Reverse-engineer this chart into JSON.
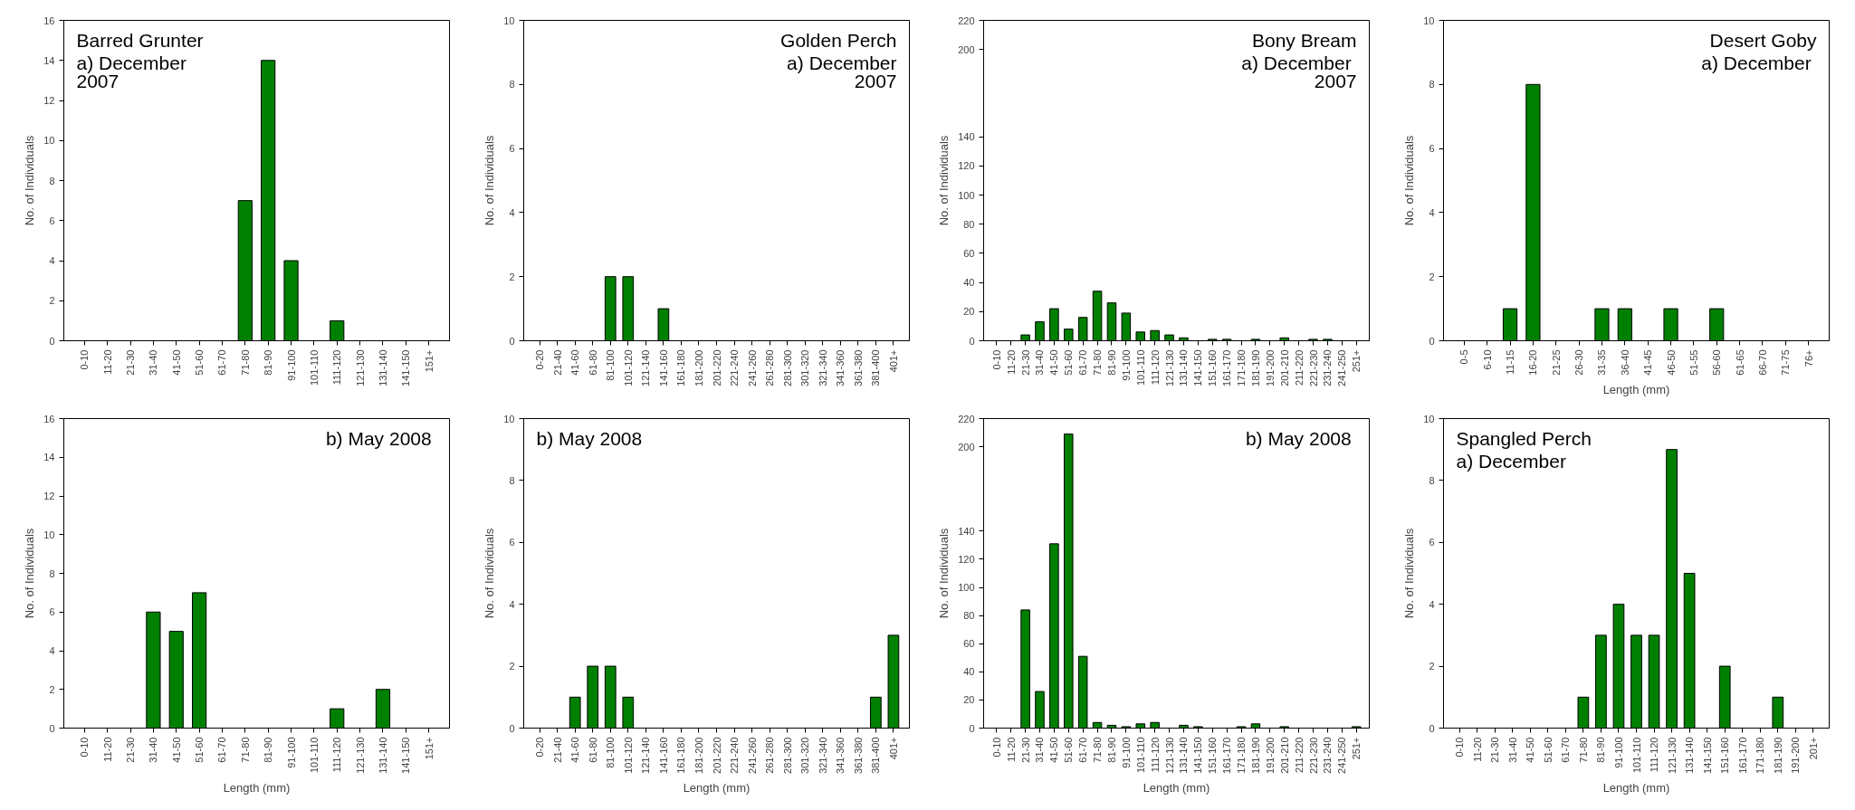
{
  "chart_data": [
    {
      "type": "bar",
      "categories": [
        "0-10",
        "11-20",
        "21-30",
        "31-40",
        "41-50",
        "51-60",
        "61-70",
        "71-80",
        "81-90",
        "91-100",
        "101-110",
        "111-120",
        "121-130",
        "131-140",
        "141-150",
        "151+"
      ],
      "values": [
        0,
        0,
        0,
        0,
        0,
        0,
        0,
        7,
        14,
        4,
        0,
        1,
        0,
        0,
        0,
        0
      ],
      "color": "#008000",
      "ylim": [
        0,
        16
      ],
      "yticks": [
        0,
        2,
        4,
        6,
        8,
        10,
        12,
        14,
        16
      ],
      "ylabel": "No. of Individuals",
      "annotations": [
        "Barred Grunter\na)  December\n2007"
      ]
    },
    {
      "type": "bar",
      "categories": [
        "0-20",
        "21-40",
        "41-60",
        "61-80",
        "81-100",
        "101-120",
        "121-140",
        "141-160",
        "161-180",
        "181-200",
        "201-220",
        "221-240",
        "241-260",
        "261-280",
        "281-300",
        "301-320",
        "321-340",
        "341-360",
        "361-380",
        "381-400",
        "401+"
      ],
      "values": [
        0,
        0,
        0,
        0,
        2,
        2,
        0,
        1,
        0,
        0,
        0,
        0,
        0,
        0,
        0,
        0,
        0,
        0,
        0,
        0,
        0
      ],
      "color": "#008000",
      "ylim": [
        0,
        10
      ],
      "yticks": [
        0,
        2,
        4,
        6,
        8,
        10
      ],
      "ylabel": "No. of Individuals",
      "annotations": [
        "Golden Perch\na) December\n2007"
      ]
    },
    {
      "type": "bar",
      "categories": [
        "0-10",
        "11-20",
        "21-30",
        "31-40",
        "41-50",
        "51-60",
        "61-70",
        "71-80",
        "81-90",
        "91-100",
        "101-110",
        "111-120",
        "121-130",
        "131-140",
        "141-150",
        "151-160",
        "161-170",
        "171-180",
        "181-190",
        "191-200",
        "201-210",
        "211-220",
        "221-230",
        "231-240",
        "241-250",
        "251+"
      ],
      "values": [
        0,
        0,
        4,
        13,
        22,
        8,
        16,
        34,
        26,
        19,
        6,
        7,
        4,
        2,
        0,
        1,
        1,
        0,
        1,
        0,
        2,
        0,
        1,
        1,
        0,
        0
      ],
      "color": "#008000",
      "ylim": [
        0,
        220
      ],
      "yticks": [
        0,
        20,
        40,
        60,
        80,
        100,
        120,
        140,
        200,
        220
      ],
      "ylabel": "No. of Individuals",
      "annotations": [
        "Bony Bream\na)  December\n2007"
      ]
    },
    {
      "type": "bar",
      "categories": [
        "0-5",
        "6-10",
        "11-15",
        "16-20",
        "21-25",
        "26-30",
        "31-35",
        "36-40",
        "41-45",
        "46-50",
        "51-55",
        "56-60",
        "61-65",
        "66-70",
        "71-75",
        "76+"
      ],
      "values": [
        0,
        0,
        1,
        8,
        0,
        0,
        1,
        1,
        0,
        1,
        0,
        1,
        0,
        0,
        0,
        0
      ],
      "color": "#008000",
      "ylim": [
        0,
        10
      ],
      "yticks": [
        0,
        2,
        4,
        6,
        8,
        10
      ],
      "ylabel": "No. of Individuals",
      "xlabel": "Length (mm)",
      "annotations": [
        "Desert Goby\na)  December"
      ]
    },
    {
      "type": "bar",
      "categories": [
        "0-10",
        "11-20",
        "21-30",
        "31-40",
        "41-50",
        "51-60",
        "61-70",
        "71-80",
        "81-90",
        "91-100",
        "101-110",
        "111-120",
        "121-130",
        "131-140",
        "141-150",
        "151+"
      ],
      "values": [
        0,
        0,
        0,
        6,
        5,
        7,
        0,
        0,
        0,
        0,
        0,
        1,
        0,
        2,
        0,
        0
      ],
      "color": "#008000",
      "ylim": [
        0,
        16
      ],
      "yticks": [
        0,
        2,
        4,
        6,
        8,
        10,
        12,
        14,
        16
      ],
      "ylabel": "No. of Individuals",
      "xlabel": "Length (mm)",
      "annotations": [
        "b)  May 2008"
      ]
    },
    {
      "type": "bar",
      "categories": [
        "0-20",
        "21-40",
        "41-60",
        "61-80",
        "81-100",
        "101-120",
        "121-140",
        "141-160",
        "161-180",
        "181-200",
        "201-220",
        "221-240",
        "241-260",
        "261-280",
        "281-300",
        "301-320",
        "321-340",
        "341-360",
        "361-380",
        "381-400",
        "401+"
      ],
      "values": [
        0,
        0,
        1,
        2,
        2,
        1,
        0,
        0,
        0,
        0,
        0,
        0,
        0,
        0,
        0,
        0,
        0,
        0,
        0,
        1,
        3
      ],
      "color": "#008000",
      "ylim": [
        0,
        10
      ],
      "yticks": [
        0,
        2,
        4,
        6,
        8,
        10
      ],
      "ylabel": "No. of Individuals",
      "xlabel": "Length (mm)",
      "annotations": [
        "b)  May 2008"
      ]
    },
    {
      "type": "bar",
      "categories": [
        "0-10",
        "11-20",
        "21-30",
        "31-40",
        "41-50",
        "51-60",
        "61-70",
        "71-80",
        "81-90",
        "91-100",
        "101-110",
        "111-120",
        "121-130",
        "131-140",
        "141-150",
        "151-160",
        "161-170",
        "171-180",
        "181-190",
        "191-200",
        "201-210",
        "211-220",
        "221-230",
        "231-240",
        "241-250",
        "251+"
      ],
      "values": [
        0,
        0,
        84,
        26,
        131,
        209,
        51,
        4,
        2,
        1,
        3,
        4,
        0,
        2,
        1,
        0,
        0,
        1,
        3,
        0,
        1,
        0,
        0,
        0,
        0,
        1
      ],
      "color": "#008000",
      "ylim": [
        0,
        220
      ],
      "yticks": [
        0,
        20,
        40,
        60,
        80,
        100,
        120,
        140,
        200,
        220
      ],
      "ylabel": "No. of Individuals",
      "xlabel": "Length (mm)",
      "annotations": [
        "b)  May 2008"
      ]
    },
    {
      "type": "bar",
      "categories": [
        "0-10",
        "11-20",
        "21-30",
        "31-40",
        "41-50",
        "51-60",
        "61-70",
        "71-80",
        "81-90",
        "91-100",
        "101-110",
        "111-120",
        "121-130",
        "131-140",
        "141-150",
        "151-160",
        "161-170",
        "171-180",
        "181-190",
        "191-200",
        "201+"
      ],
      "values": [
        0,
        0,
        0,
        0,
        0,
        0,
        0,
        1,
        3,
        4,
        3,
        3,
        9,
        5,
        0,
        2,
        0,
        0,
        1,
        0,
        0
      ],
      "color": "#008000",
      "ylim": [
        0,
        10
      ],
      "yticks": [
        0,
        2,
        4,
        6,
        8,
        10
      ],
      "ylabel": "No. of Individuals",
      "xlabel": "Length (mm)",
      "annotations": [
        "Spangled Perch\na)  December"
      ]
    }
  ]
}
